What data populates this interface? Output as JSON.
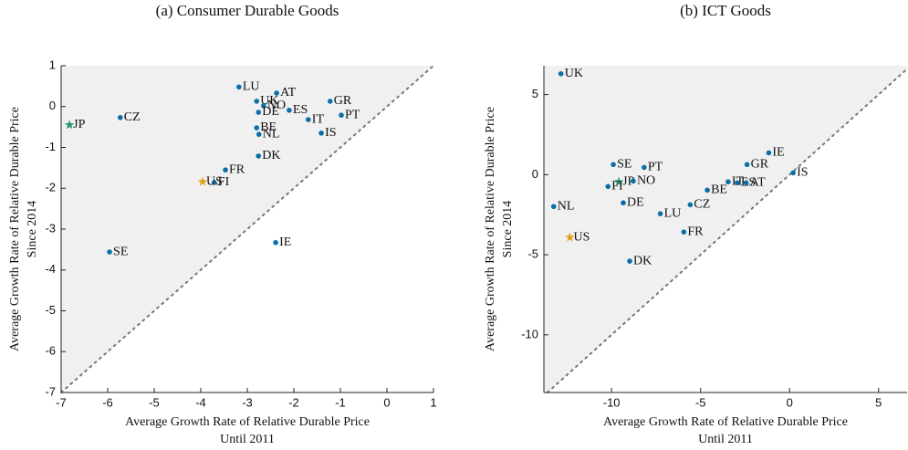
{
  "chart_data": [
    {
      "type": "scatter",
      "title": "(a) Consumer Durable Goods",
      "xlabel": [
        "Average Growth Rate of Relative Durable Price",
        "Until 2011"
      ],
      "ylabel": [
        "Average Growth Rate of Relative Durable Price",
        "Since 2014"
      ],
      "xlim": [
        -7,
        1
      ],
      "ylim": [
        -7,
        1
      ],
      "xticks": [
        -7,
        -6,
        -5,
        -4,
        -3,
        -2,
        -1,
        0,
        1
      ],
      "yticks": [
        1,
        0,
        -1,
        -2,
        -3,
        -4,
        -5,
        -6,
        -7
      ],
      "diagonal": true,
      "shade_color": "#f0f0f0",
      "labels": [
        "JP",
        "CZ",
        "SE",
        "LU",
        "AT",
        "UK",
        "NO",
        "DE",
        "ES",
        "GR",
        "IT",
        "PT",
        "BE",
        "NL",
        "IS",
        "DK",
        "FR",
        "FI",
        "US",
        "IE"
      ],
      "x": [
        -6.82,
        -5.73,
        -5.96,
        -3.18,
        -2.37,
        -2.8,
        -2.65,
        -2.76,
        -2.1,
        -1.22,
        -1.69,
        -0.98,
        -2.8,
        -2.75,
        -1.41,
        -2.76,
        -3.47,
        -3.71,
        -3.96,
        -2.39
      ],
      "values": [
        -0.45,
        -0.27,
        -3.56,
        0.48,
        0.33,
        0.13,
        0.02,
        -0.14,
        -0.09,
        0.13,
        -0.32,
        -0.21,
        -0.52,
        -0.68,
        -0.65,
        -1.21,
        -1.55,
        -1.86,
        -1.84,
        -3.33
      ],
      "markers": [
        "star",
        "circle",
        "circle",
        "circle",
        "circle",
        "circle",
        "circle",
        "circle",
        "circle",
        "circle",
        "circle",
        "circle",
        "circle",
        "circle",
        "circle",
        "circle",
        "circle",
        "circle",
        "star",
        "circle"
      ],
      "colors": [
        "#2a9d6f",
        "#0a6ea8",
        "#0a6ea8",
        "#0a6ea8",
        "#0a6ea8",
        "#0a6ea8",
        "#0a6ea8",
        "#0a6ea8",
        "#0a6ea8",
        "#0a6ea8",
        "#0a6ea8",
        "#0a6ea8",
        "#0a6ea8",
        "#0a6ea8",
        "#0a6ea8",
        "#0a6ea8",
        "#0a6ea8",
        "#0a6ea8",
        "#e0a020",
        "#0a6ea8"
      ]
    },
    {
      "type": "scatter",
      "title": "(b) ICT Goods",
      "xlabel": [
        "Average Growth Rate of Relative Durable Price",
        "Until 2011"
      ],
      "ylabel": [
        "Average Growth Rate of Relative Durable Price",
        "Since 2014"
      ],
      "xlim": [
        -13.8,
        6.6
      ],
      "ylim": [
        -13.6,
        6.8
      ],
      "xticks": [
        -10,
        -5,
        0,
        5
      ],
      "yticks": [
        5,
        0,
        -5,
        -10
      ],
      "diagonal": true,
      "shade_color": "#f0f0f0",
      "labels": [
        "UK",
        "SE",
        "PT",
        "JP",
        "NO",
        "FI",
        "DE",
        "NL",
        "LU",
        "US",
        "DK",
        "CZ",
        "BE",
        "IT",
        "ES",
        "AT",
        "GR",
        "IE",
        "IS",
        "FR"
      ],
      "x": [
        -12.84,
        -9.9,
        -8.17,
        -9.59,
        -8.78,
        -10.2,
        -9.34,
        -13.25,
        -7.26,
        -12.34,
        -8.98,
        -5.58,
        -4.62,
        -3.45,
        -2.94,
        -2.44,
        -2.39,
        -1.17,
        0.2,
        -5.94
      ],
      "values": [
        6.3,
        0.63,
        0.45,
        -0.45,
        -0.4,
        -0.74,
        -1.76,
        -1.99,
        -2.44,
        -3.92,
        -5.4,
        -1.88,
        -0.97,
        -0.45,
        -0.51,
        -0.51,
        0.63,
        1.36,
        0.11,
        -3.58
      ],
      "markers": [
        "circle",
        "circle",
        "circle",
        "star",
        "circle",
        "circle",
        "circle",
        "circle",
        "circle",
        "star",
        "circle",
        "circle",
        "circle",
        "circle",
        "circle",
        "circle",
        "circle",
        "circle",
        "circle",
        "circle"
      ],
      "colors": [
        "#0a6ea8",
        "#0a6ea8",
        "#0a6ea8",
        "#2a9d6f",
        "#0a6ea8",
        "#0a6ea8",
        "#0a6ea8",
        "#0a6ea8",
        "#0a6ea8",
        "#e0a020",
        "#0a6ea8",
        "#0a6ea8",
        "#0a6ea8",
        "#0a6ea8",
        "#0a6ea8",
        "#0a6ea8",
        "#0a6ea8",
        "#0a6ea8",
        "#0a6ea8",
        "#0a6ea8"
      ]
    }
  ]
}
